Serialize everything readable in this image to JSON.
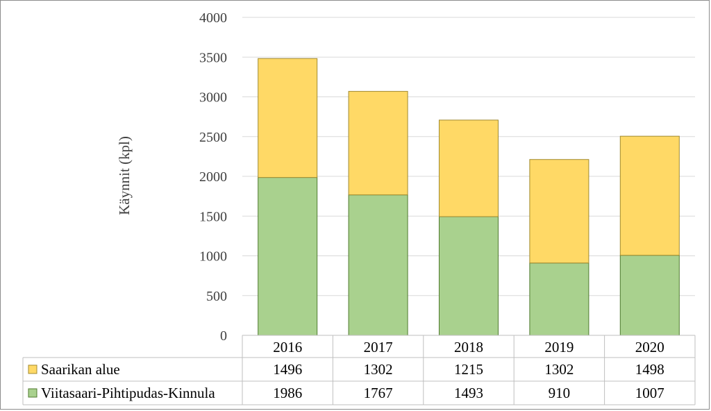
{
  "chart_data": {
    "type": "bar",
    "stacked": true,
    "categories": [
      "2016",
      "2017",
      "2018",
      "2019",
      "2020"
    ],
    "series": [
      {
        "name": "Saarikan alue",
        "values": [
          1496,
          1302,
          1215,
          1302,
          1498
        ],
        "color": "#ffd966",
        "stroke": "#a08a30"
      },
      {
        "name": "Viitasaari-Pihtipudas-Kinnula",
        "values": [
          1986,
          1767,
          1493,
          910,
          1007
        ],
        "color": "#a9d18e",
        "stroke": "#4f7a2f"
      }
    ],
    "ylabel": "Käynnit (kpl)",
    "ylim": [
      0,
      4000
    ],
    "yticks": [
      0,
      500,
      1000,
      1500,
      2000,
      2500,
      3000,
      3500,
      4000
    ],
    "grid": true,
    "legend": "data-table"
  }
}
